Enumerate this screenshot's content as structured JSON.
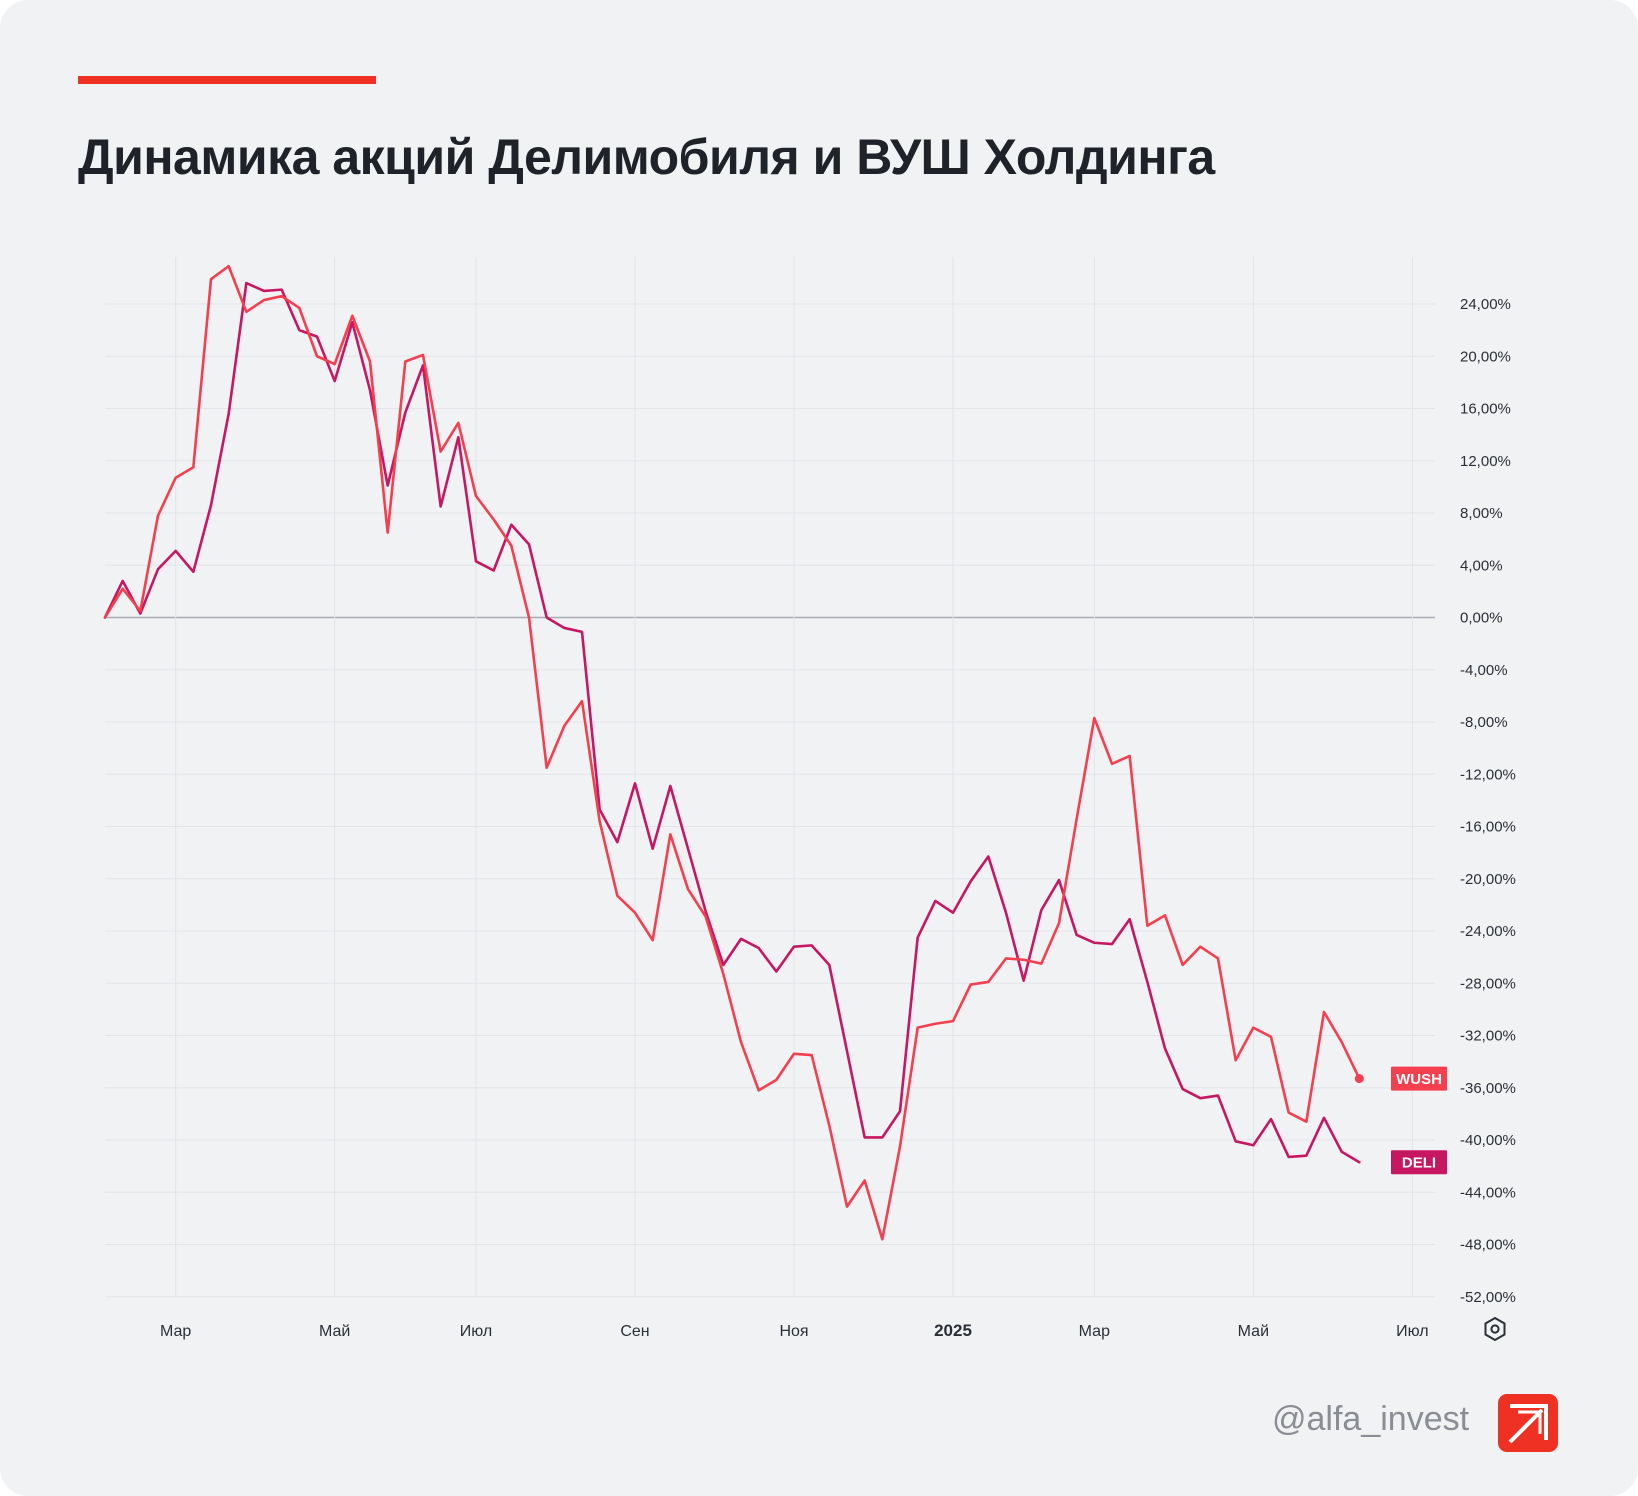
{
  "header": {
    "title": "Динамика акций Делимобиля и ВУШ Холдинга"
  },
  "footer": {
    "handle": "@alfa_invest",
    "logo_icon": "alfa-arrow-logo"
  },
  "settings_icon": "settings-icon",
  "colors": {
    "background": "#f1f2f4",
    "accent": "#ef3124",
    "wush": "#f43f4f",
    "deli": "#c71662",
    "grid": "#e2e4e8",
    "zero_line": "#a8abb1"
  },
  "chart_data": {
    "type": "line",
    "title": "Динамика акций Делимобиля и ВУШ Холдинга",
    "x_labels": [
      {
        "label": "Мар",
        "x": 4
      },
      {
        "label": "Май",
        "x": 13
      },
      {
        "label": "Июл",
        "x": 21
      },
      {
        "label": "Сен",
        "x": 30
      },
      {
        "label": "Ноя",
        "x": 39
      },
      {
        "label": "2025",
        "x": 48,
        "bold": true
      },
      {
        "label": "Мар",
        "x": 56
      },
      {
        "label": "Май",
        "x": 65
      },
      {
        "label": "Июл",
        "x": 74
      }
    ],
    "x_range": [
      0,
      75
    ],
    "y_ticks": [
      "24,00%",
      "20,00%",
      "16,00%",
      "12,00%",
      "8,00%",
      "4,00%",
      "0,00%",
      "-4,00%",
      "-8,00%",
      "-12,00%",
      "-16,00%",
      "-20,00%",
      "-24,00%",
      "-28,00%",
      "-32,00%",
      "-36,00%",
      "-40,00%",
      "-44,00%",
      "-48,00%",
      "-52,00%"
    ],
    "y_tick_values": [
      24,
      20,
      16,
      12,
      8,
      4,
      0,
      -4,
      -8,
      -12,
      -16,
      -20,
      -24,
      -28,
      -32,
      -36,
      -40,
      -44,
      -48,
      -52
    ],
    "ylim": [
      -53.5,
      27.5
    ],
    "grid": true,
    "series": [
      {
        "name": "WUSH",
        "color": "#f43f4f",
        "values": [
          0,
          2.2,
          0.5,
          7.8,
          10.7,
          11.5,
          25.9,
          26.9,
          23.4,
          24.3,
          24.6,
          23.7,
          20,
          19.4,
          23.1,
          19.6,
          6.5,
          19.6,
          20.1,
          12.7,
          14.9,
          9.3,
          7.5,
          5.5,
          0,
          -11.5,
          -8.3,
          -6.4,
          -15.6,
          -21.3,
          -22.6,
          -24.7,
          -16.6,
          -20.8,
          -22.9,
          -27.3,
          -32.5,
          -36.2,
          -35.4,
          -33.4,
          -33.5,
          -38.9,
          -45.1,
          -43.1,
          -47.6,
          -40.5,
          -31.4,
          -31.1,
          -30.9,
          -28.1,
          -27.9,
          -26.1,
          -26.2,
          -26.5,
          -23.4,
          -15.4,
          -7.7,
          -11.2,
          -10.6,
          -23.6,
          -22.8,
          -26.6,
          -25.2,
          -26.1,
          -33.9,
          -31.4,
          -32.1,
          -37.9,
          -38.6,
          -30.2,
          -32.5,
          -35.3
        ]
      },
      {
        "name": "DELI",
        "color": "#c71662",
        "values": [
          0,
          2.8,
          0.3,
          3.7,
          5.1,
          3.5,
          8.6,
          15.6,
          25.6,
          25,
          25.1,
          22,
          21.5,
          18.1,
          22.6,
          17.4,
          10.1,
          15.7,
          19.3,
          8.5,
          13.8,
          4.3,
          3.6,
          7.1,
          5.6,
          0,
          -0.8,
          -1.1,
          -14.7,
          -17.2,
          -12.7,
          -17.7,
          -12.9,
          -17.7,
          -22.5,
          -26.6,
          -24.6,
          -25.3,
          -27.1,
          -25.2,
          -25.1,
          -26.6,
          -33.2,
          -39.8,
          -39.8,
          -37.8,
          -24.5,
          -21.7,
          -22.6,
          -20.2,
          -18.3,
          -22.6,
          -27.8,
          -22.4,
          -20.1,
          -24.3,
          -24.9,
          -25,
          -23.1,
          -27.9,
          -33,
          -36.1,
          -36.8,
          -36.6,
          -40.1,
          -40.4,
          -38.4,
          -41.3,
          -41.2,
          -38.3,
          -40.9,
          -41.7
        ]
      }
    ]
  }
}
